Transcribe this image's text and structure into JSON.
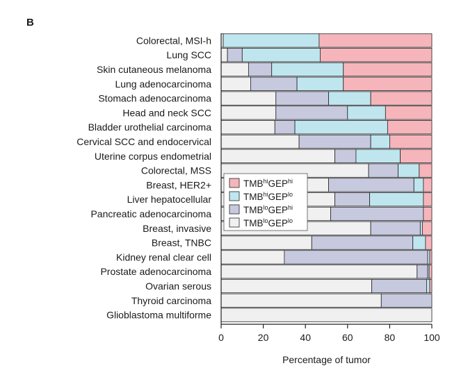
{
  "panel_label": "B",
  "chart_data": {
    "type": "bar",
    "orientation": "horizontal",
    "stacked": true,
    "title": "",
    "xlabel": "Percentage of tumor",
    "ylabel": "",
    "xlim": [
      0,
      100
    ],
    "xticks": [
      "0",
      "20",
      "40",
      "60",
      "80",
      "100"
    ],
    "categories": [
      "Colorectal, MSI-h",
      "Lung SCC",
      "Skin cutaneous melanoma",
      "Lung adenocarcinoma",
      "Stomach adenocarcinoma",
      "Head and neck SCC",
      "Bladder urothelial carcinoma",
      "Cervical SCC and endocervical",
      "Uterine corpus endometrial",
      "Colorectal, MSS",
      "Breast, HER2+",
      "Liver hepatocellular",
      "Pancreatic adenocarcinoma",
      "Breast, invasive",
      "Breast, TNBC",
      "Kidney renal clear cell",
      "Prostate adenocarcinoma",
      "Ovarian serous",
      "Thyroid carcinoma",
      "Glioblastoma multiforme"
    ],
    "series": [
      {
        "key": "lolo",
        "color": "#f0f0f0",
        "values": [
          1,
          3,
          13,
          14,
          26,
          26,
          25.5,
          37,
          54,
          70,
          51,
          54,
          52,
          71,
          43,
          30,
          93,
          71.5,
          76,
          100
        ]
      },
      {
        "key": "lohi",
        "color": "#c7c9df",
        "values": [
          0,
          7,
          11,
          22,
          25,
          34,
          9.5,
          34,
          10,
          14,
          40.5,
          16.5,
          44,
          23.5,
          48,
          68,
          5,
          26,
          24,
          0
        ]
      },
      {
        "key": "hilo",
        "color": "#bfe6ef",
        "values": [
          45.5,
          37,
          34,
          22,
          20,
          18,
          44,
          9,
          21,
          10,
          4.5,
          25.5,
          0,
          1,
          6,
          1,
          0.7,
          1.5,
          0,
          0
        ]
      },
      {
        "key": "hihi",
        "color": "#f6b5bb",
        "values": [
          53.5,
          53,
          42,
          42,
          29,
          22,
          21,
          20,
          15,
          6,
          4,
          4,
          4,
          4.5,
          3,
          1,
          1.3,
          1,
          0,
          0
        ]
      }
    ],
    "legend": {
      "position": "center-left",
      "entries": [
        {
          "key": "hihi",
          "base": "TMB",
          "sup1": "hi",
          "mid": "GEP",
          "sup2": "hi",
          "color": "#f6b5bb"
        },
        {
          "key": "hilo",
          "base": "TMB",
          "sup1": "hi",
          "mid": "GEP",
          "sup2": "lo",
          "color": "#bfe6ef"
        },
        {
          "key": "lohi",
          "base": "TMB",
          "sup1": "lo",
          "mid": "GEP",
          "sup2": "hi",
          "color": "#c7c9df"
        },
        {
          "key": "lolo",
          "base": "TMB",
          "sup1": "lo",
          "mid": "GEP",
          "sup2": "lo",
          "color": "#f0f0f0"
        }
      ]
    },
    "grid": false
  }
}
